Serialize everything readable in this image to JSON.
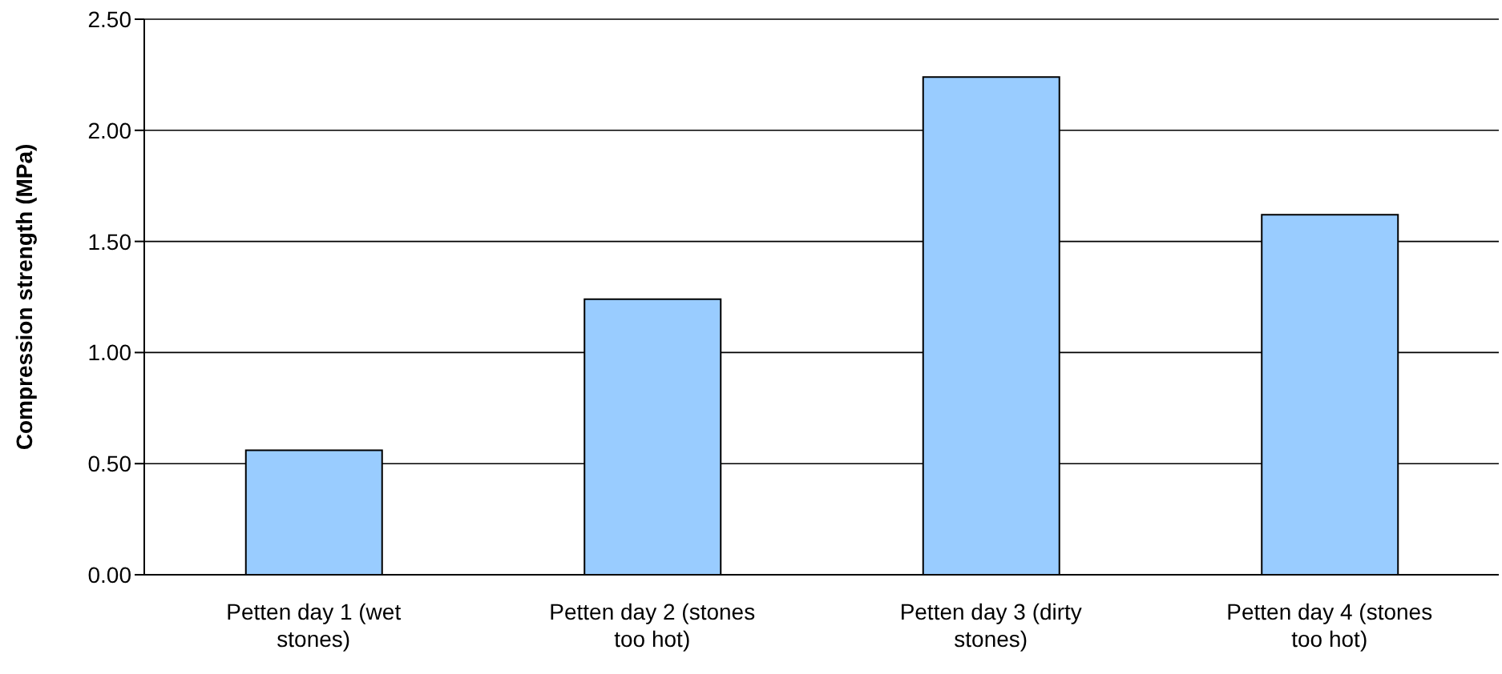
{
  "chart_data": {
    "type": "bar",
    "ylabel": "Compression strength (MPa)",
    "categories": [
      "Petten day 1 (wet stones)",
      "Petten day 2 (stones too hot)",
      "Petten day 3 (dirty stones)",
      "Petten day 4 (stones too hot)"
    ],
    "values": [
      0.56,
      1.24,
      2.24,
      1.62
    ],
    "color": "#99ccff",
    "ylim": [
      0,
      2.5
    ],
    "yticks": [
      {
        "value": 0,
        "label": "0.00"
      },
      {
        "value": 0.5,
        "label": "0.50"
      },
      {
        "value": 1,
        "label": "1.00"
      },
      {
        "value": 1.5,
        "label": "1.50"
      },
      {
        "value": 2,
        "label": "2.00"
      },
      {
        "value": 2.5,
        "label": "2.50"
      }
    ],
    "grid": "y"
  }
}
